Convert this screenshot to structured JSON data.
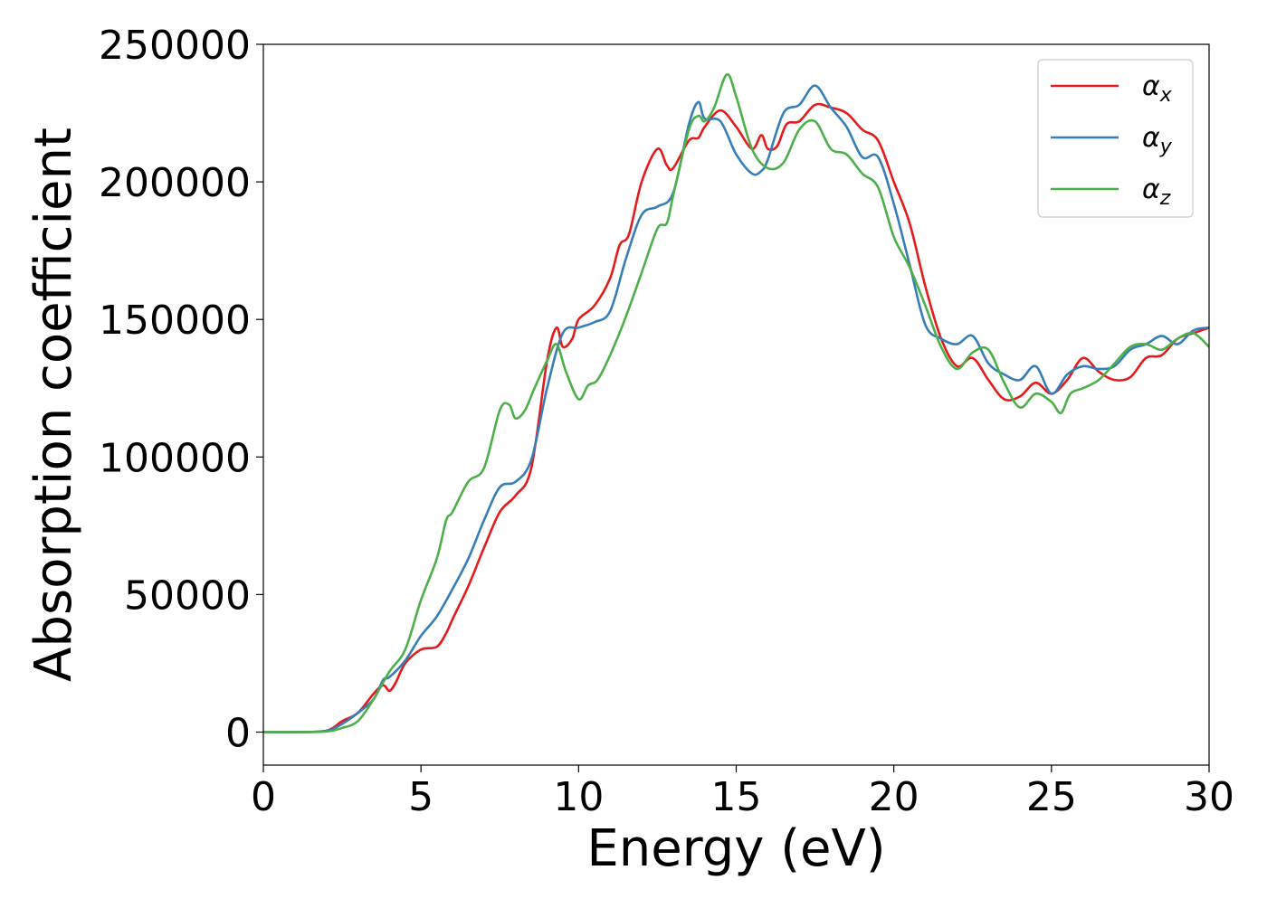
{
  "chart_data": {
    "type": "line",
    "title": "",
    "xlabel": "Energy (eV)",
    "ylabel": "Absorption coefficient",
    "xlim": [
      0,
      30
    ],
    "ylim": [
      -12000,
      250000
    ],
    "xticks": [
      0,
      5,
      10,
      15,
      20,
      25,
      30
    ],
    "yticks": [
      0,
      50000,
      100000,
      150000,
      200000,
      250000
    ],
    "grid": false,
    "legend_position": "top-right",
    "series": [
      {
        "name": "αx",
        "label_base": "α",
        "label_sub": "x",
        "color": "#e41a1c",
        "x": [
          0,
          1,
          2,
          2.5,
          3,
          3.5,
          3.8,
          4,
          4.2,
          4.5,
          5,
          5.5,
          5.8,
          6,
          6.5,
          7,
          7.5,
          8,
          8.5,
          9,
          9.3,
          9.5,
          9.8,
          10,
          10.5,
          11,
          11.3,
          11.6,
          12,
          12.5,
          12.8,
          13,
          13.5,
          13.8,
          14,
          14.5,
          15,
          15.5,
          15.8,
          16,
          16.3,
          16.6,
          17,
          17.5,
          18,
          18.5,
          19,
          19.5,
          20,
          20.5,
          21,
          21.5,
          22,
          22.5,
          23,
          23.5,
          24,
          24.5,
          25,
          25.5,
          26,
          26.5,
          27,
          27.5,
          28,
          28.5,
          29,
          29.5,
          30
        ],
        "y": [
          0,
          0,
          500,
          4000,
          7000,
          14000,
          17000,
          15000,
          18000,
          25000,
          30000,
          31000,
          36000,
          41000,
          53000,
          67000,
          80000,
          86000,
          96000,
          135000,
          147000,
          140000,
          143000,
          150000,
          155000,
          165000,
          177000,
          181000,
          200000,
          212000,
          206000,
          205000,
          215000,
          216000,
          220000,
          226000,
          220000,
          212000,
          217000,
          212000,
          213000,
          221000,
          222000,
          228000,
          227000,
          225000,
          219000,
          215000,
          200000,
          185000,
          162000,
          143000,
          133000,
          136000,
          128000,
          121000,
          122000,
          127000,
          123000,
          128000,
          136000,
          131000,
          128000,
          129000,
          136000,
          137000,
          143000,
          145000,
          147000
        ]
      },
      {
        "name": "αy",
        "label_base": "α",
        "label_sub": "y",
        "color": "#377eb8",
        "x": [
          0,
          1,
          2,
          2.5,
          3,
          3.5,
          3.8,
          4,
          4.5,
          5,
          5.5,
          6,
          6.5,
          7,
          7.5,
          8,
          8.5,
          9,
          9.5,
          10,
          10.5,
          11,
          11.5,
          12,
          12.5,
          13,
          13.5,
          13.8,
          14,
          14.5,
          15,
          15.5,
          15.8,
          16,
          16.5,
          17,
          17.5,
          18,
          18.5,
          19,
          19.5,
          20,
          20.5,
          21,
          21.5,
          22,
          22.5,
          23,
          23.5,
          24,
          24.5,
          25,
          25.5,
          26,
          26.5,
          27,
          27.5,
          28,
          28.5,
          29,
          29.5,
          30
        ],
        "y": [
          0,
          0,
          500,
          3000,
          7000,
          12000,
          19000,
          20000,
          26000,
          35000,
          42000,
          52000,
          63000,
          77000,
          89000,
          91000,
          99000,
          125000,
          145000,
          147000,
          149000,
          153000,
          172000,
          188000,
          191000,
          196000,
          221000,
          229000,
          223000,
          222000,
          210000,
          203000,
          204000,
          208000,
          225000,
          228000,
          235000,
          227000,
          220000,
          209000,
          209000,
          192000,
          170000,
          148000,
          143000,
          141000,
          144000,
          134000,
          130000,
          128000,
          133000,
          123000,
          130000,
          133000,
          132000,
          133000,
          139000,
          141000,
          144000,
          141000,
          146000,
          147000
        ]
      },
      {
        "name": "αz",
        "label_base": "α",
        "label_sub": "z",
        "color": "#4daf4a",
        "x": [
          0,
          1,
          2,
          2.5,
          3,
          3.5,
          4,
          4.5,
          5,
          5.5,
          5.8,
          6,
          6.5,
          7,
          7.5,
          7.8,
          8,
          8.3,
          8.6,
          9,
          9.3,
          9.6,
          10,
          10.3,
          10.6,
          11,
          11.5,
          12,
          12.5,
          12.8,
          13,
          13.5,
          13.8,
          14,
          14.3,
          14.7,
          15,
          15.5,
          16,
          16.5,
          17,
          17.5,
          18,
          18.5,
          19,
          19.5,
          20,
          20.5,
          21,
          21.5,
          22,
          22.5,
          23,
          23.5,
          24,
          24.5,
          25,
          25.3,
          25.6,
          26,
          26.5,
          27,
          27.5,
          28,
          28.5,
          29,
          29.5,
          30
        ],
        "y": [
          0,
          0,
          200,
          1500,
          4000,
          12000,
          22000,
          30000,
          48000,
          63000,
          77000,
          80000,
          91000,
          96000,
          117000,
          119000,
          114000,
          117000,
          125000,
          135000,
          141000,
          131000,
          121000,
          126000,
          128000,
          137000,
          151000,
          167000,
          183000,
          185000,
          195000,
          219000,
          224000,
          222000,
          227000,
          239000,
          231000,
          212000,
          205000,
          207000,
          219000,
          222000,
          212000,
          210000,
          203000,
          198000,
          180000,
          169000,
          155000,
          140000,
          132000,
          138000,
          139000,
          127000,
          118000,
          123000,
          120000,
          116000,
          123000,
          125000,
          128000,
          134000,
          140000,
          141000,
          139000,
          143000,
          145000,
          140000
        ]
      }
    ]
  }
}
